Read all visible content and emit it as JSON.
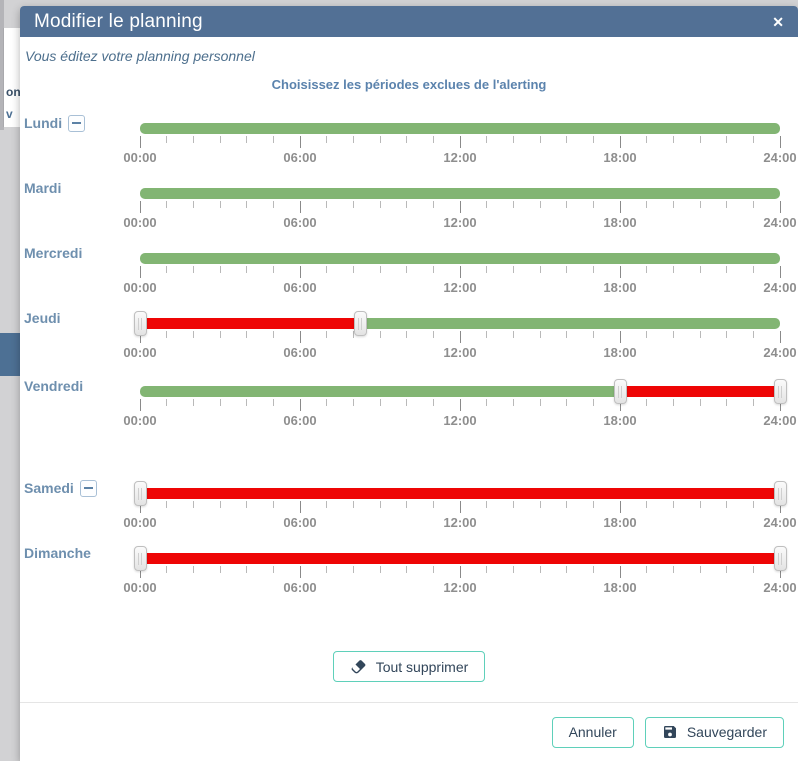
{
  "modal": {
    "title": "Modifier le planning",
    "close_glyph": "✕",
    "subtitle": "Vous éditez votre planning personnel",
    "heading": "Choisissez les périodes exclues de l'alerting"
  },
  "slider": {
    "hours_total": 24,
    "tick_hours": [
      0,
      6,
      12,
      18,
      24
    ],
    "tick_labels": [
      "00:00",
      "06:00",
      "12:00",
      "18:00",
      "24:00"
    ]
  },
  "days": [
    {
      "label": "Lundi",
      "removable": true,
      "segments": [
        {
          "color": "green",
          "start": 0,
          "end": 24
        }
      ],
      "handles": []
    },
    {
      "label": "Mardi",
      "removable": false,
      "segments": [
        {
          "color": "green",
          "start": 0,
          "end": 24
        }
      ],
      "handles": []
    },
    {
      "label": "Mercredi",
      "removable": false,
      "segments": [
        {
          "color": "green",
          "start": 0,
          "end": 24
        }
      ],
      "handles": []
    },
    {
      "label": "Jeudi",
      "removable": false,
      "segments": [
        {
          "color": "red",
          "start": 0,
          "end": 8.25
        },
        {
          "color": "green",
          "start": 8.25,
          "end": 24
        }
      ],
      "handles": [
        0,
        8.25
      ]
    },
    {
      "label": "Vendredi",
      "removable": false,
      "segments": [
        {
          "color": "green",
          "start": 0,
          "end": 18
        },
        {
          "color": "red",
          "start": 18,
          "end": 24
        }
      ],
      "handles": [
        18,
        24
      ]
    },
    {
      "label": "Samedi",
      "removable": true,
      "segments": [
        {
          "color": "red",
          "start": 0,
          "end": 24
        }
      ],
      "handles": [
        0,
        24
      ]
    },
    {
      "label": "Dimanche",
      "removable": false,
      "segments": [
        {
          "color": "red",
          "start": 0,
          "end": 24
        }
      ],
      "handles": [
        0,
        24
      ]
    }
  ],
  "actions": {
    "delete_all": "Tout supprimer",
    "cancel": "Annuler",
    "save": "Sauvegarder"
  },
  "icons": {
    "delete_all": "eraser-icon",
    "save": "save-disk-icon",
    "close": "close-icon",
    "remove_day": "minus-square-icon"
  },
  "colors": {
    "header_bg": "#527095",
    "green": "#82b573",
    "red": "#ee0505",
    "accent_teal": "#5fd0ba",
    "day_label": "#6e8fae",
    "heading": "#5b83ad"
  },
  "background": {
    "fragments": [
      "on",
      "v"
    ]
  }
}
